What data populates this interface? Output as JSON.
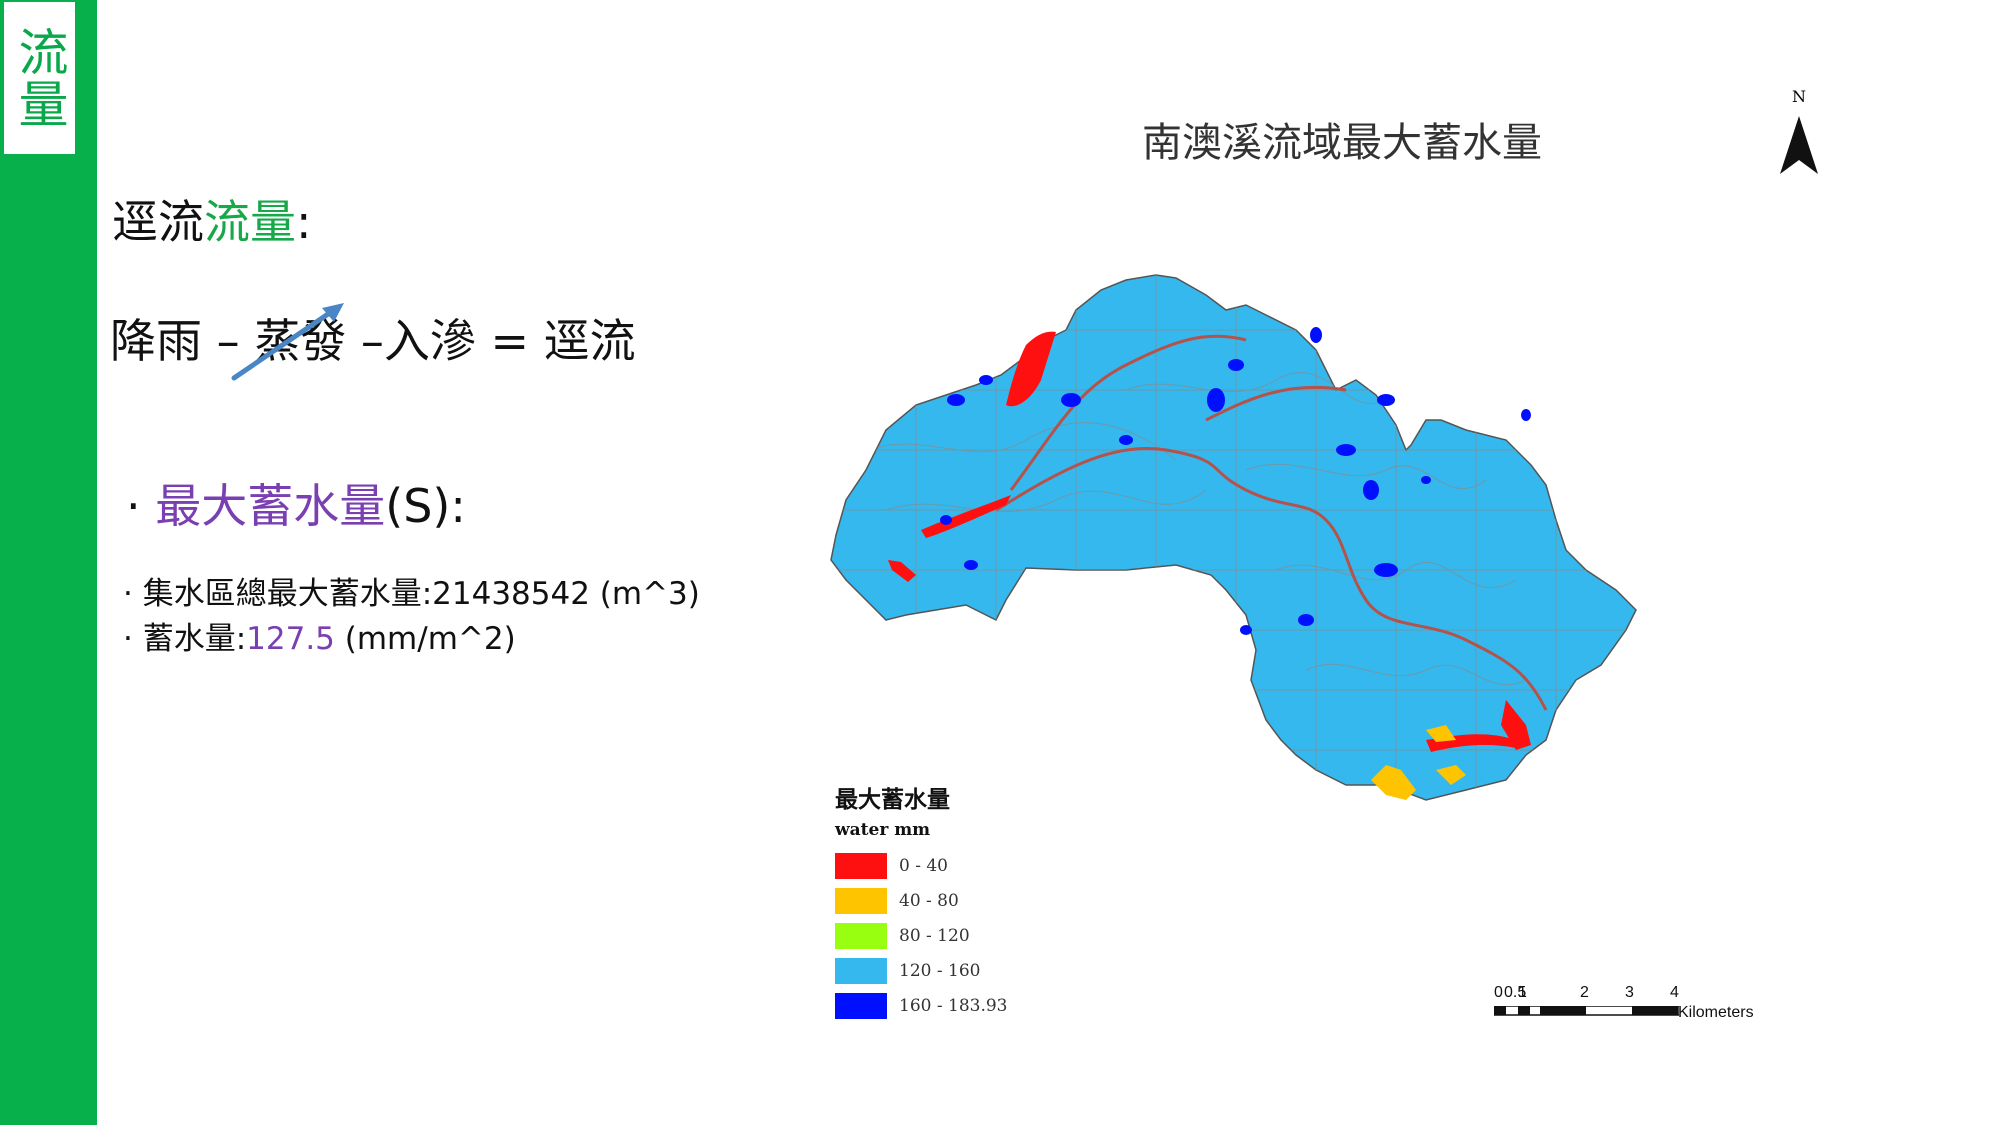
{
  "sidebar": {
    "label": "流量"
  },
  "heading": {
    "part1": "逕流",
    "part2": "流量",
    "part3": ":"
  },
  "formula": {
    "rain": "降雨 –",
    "evap": "蒸發",
    "rest": " –入滲 = 逕流"
  },
  "bullet": {
    "dot": "·",
    "term": "最大蓄水量",
    "suffix": "(S):"
  },
  "facts": {
    "line1": "· 集水區總最大蓄水量:21438542 (m^3)",
    "line2_prefix": "· 蓄水量:",
    "line2_value": "127.5",
    "line2_unit": " (mm/m^2)"
  },
  "map": {
    "title": "南澳溪流域最大蓄水量",
    "north_label": "N",
    "legend": {
      "title": "最大蓄水量",
      "subtitle": "water mm",
      "items": [
        {
          "label": "0 - 40",
          "color": "#ff1010"
        },
        {
          "label": "40 - 80",
          "color": "#ffc400"
        },
        {
          "label": "80 - 120",
          "color": "#99ff11"
        },
        {
          "label": "120 - 160",
          "color": "#35b8ee"
        },
        {
          "label": "160 - 183.93",
          "color": "#0010ff"
        }
      ]
    },
    "scale": {
      "ticks": [
        "0",
        "0.5",
        "1",
        "2",
        "3",
        "4"
      ],
      "unit": "Kilometers"
    }
  },
  "colors": {
    "accent_green": "#07b04b",
    "purple": "#7a3fb0",
    "basin": "#35b8ee"
  }
}
